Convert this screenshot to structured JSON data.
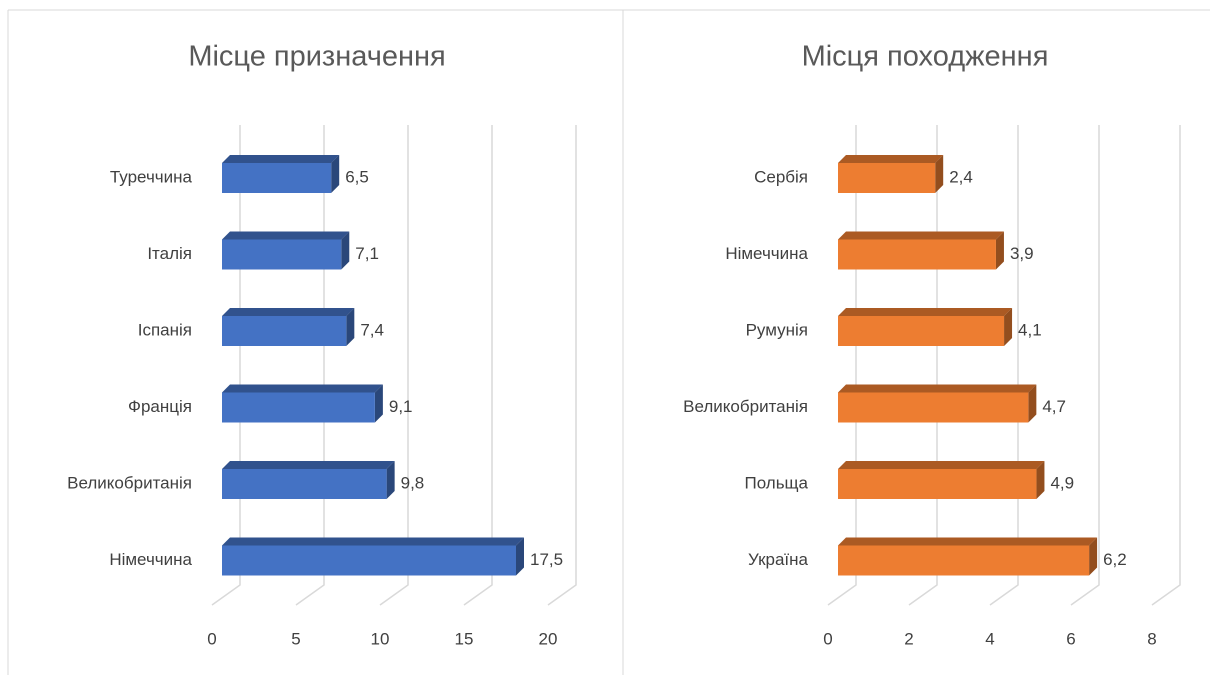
{
  "chart_data": [
    {
      "type": "bar",
      "orientation": "horizontal",
      "title": "Місце призначення",
      "categories": [
        "Туреччина",
        "Італія",
        "Іспанія",
        "Франція",
        "Великобританія",
        "Німеччина"
      ],
      "values": [
        6.5,
        7.1,
        7.4,
        9.1,
        9.8,
        17.5
      ],
      "value_labels": [
        "6,5",
        "7,1",
        "7,4",
        "9,1",
        "9,8",
        "17,5"
      ],
      "color": "#4472c4",
      "xlim": [
        0,
        20
      ],
      "xticks": [
        0,
        5,
        10,
        15,
        20
      ],
      "grid": true
    },
    {
      "type": "bar",
      "orientation": "horizontal",
      "title": "Місця походження",
      "categories": [
        "Сербія",
        "Німеччина",
        "Румунія",
        "Великобританія",
        "Польща",
        "Україна"
      ],
      "values": [
        2.4,
        3.9,
        4.1,
        4.7,
        4.9,
        6.2
      ],
      "value_labels": [
        "2,4",
        "3,9",
        "4,1",
        "4,7",
        "4,9",
        "6,2"
      ],
      "color": "#ed7d31",
      "xlim": [
        0,
        8
      ],
      "xticks": [
        0,
        2,
        4,
        6,
        8
      ],
      "grid": true
    }
  ]
}
